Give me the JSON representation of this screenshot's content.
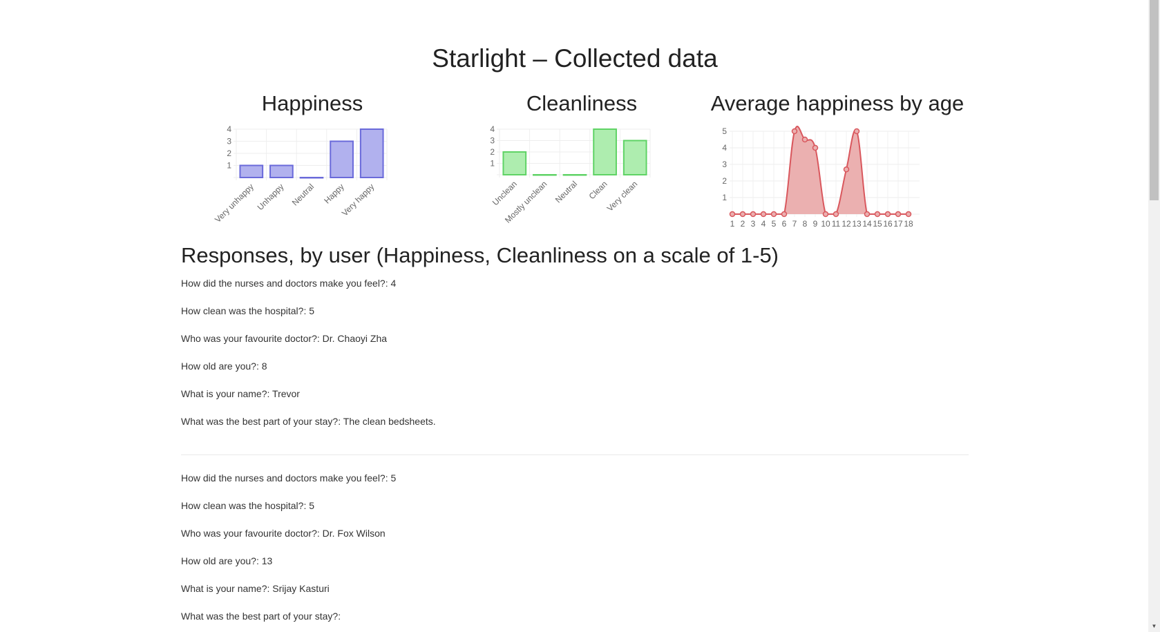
{
  "page": {
    "title": "Starlight – Collected data"
  },
  "section_title": "Responses, by user (Happiness, Cleanliness on a scale of 1-5)",
  "responses": [
    [
      {
        "q": "How did the nurses and doctors make you feel?",
        "a": "4"
      },
      {
        "q": "How clean was the hospital?",
        "a": "5"
      },
      {
        "q": "Who was your favourite doctor?",
        "a": "Dr. Chaoyi Zha"
      },
      {
        "q": "How old are you?",
        "a": "8"
      },
      {
        "q": "What is your name?",
        "a": "Trevor"
      },
      {
        "q": "What was the best part of your stay?",
        "a": "The clean bedsheets."
      }
    ],
    [
      {
        "q": "How did the nurses and doctors make you feel?",
        "a": "5"
      },
      {
        "q": "How clean was the hospital?",
        "a": "5"
      },
      {
        "q": "Who was your favourite doctor?",
        "a": "Dr. Fox Wilson"
      },
      {
        "q": "How old are you?",
        "a": "13"
      },
      {
        "q": "What is your name?",
        "a": "Srijay Kasturi"
      },
      {
        "q": "What was the best part of your stay?",
        "a": ""
      }
    ]
  ],
  "chart_data": [
    {
      "type": "bar",
      "title": "Happiness",
      "categories": [
        "Very unhappy",
        "Unhappy",
        "Neutral",
        "Happy",
        "Very happy"
      ],
      "values": [
        1,
        1,
        0,
        3,
        4
      ],
      "ylim": [
        0,
        4
      ],
      "yticks": [
        1,
        2,
        3,
        4
      ],
      "grid": true,
      "fill_color": "#b1b1ee",
      "stroke_color": "#6a6ada"
    },
    {
      "type": "bar",
      "title": "Cleanliness",
      "categories": [
        "Unclean",
        "Mostly unclean",
        "Neutral",
        "Clean",
        "Very clean"
      ],
      "values": [
        2,
        0,
        0,
        4,
        3
      ],
      "ylim": [
        0,
        4
      ],
      "yticks": [
        1,
        2,
        3,
        4
      ],
      "grid": true,
      "fill_color": "#aeedaf",
      "stroke_color": "#5fd365"
    },
    {
      "type": "area",
      "title": "Average happiness by age",
      "x": [
        "1",
        "2",
        "3",
        "4",
        "5",
        "6",
        "7",
        "8",
        "9",
        "10",
        "11",
        "12",
        "13",
        "14",
        "15",
        "16",
        "17",
        "18"
      ],
      "values": [
        0,
        0,
        0,
        0,
        0,
        0,
        5,
        4.5,
        4,
        0,
        0,
        2.7,
        5,
        0,
        0,
        0,
        0,
        0
      ],
      "ylim": [
        0,
        5
      ],
      "yticks": [
        1,
        2,
        3,
        4,
        5
      ],
      "grid": true,
      "fill_color": "#ebb0b0",
      "stroke_color": "#d9575d"
    }
  ],
  "colors": {
    "heading": "#222222",
    "text": "#333333",
    "grid": "#eeeeee"
  }
}
